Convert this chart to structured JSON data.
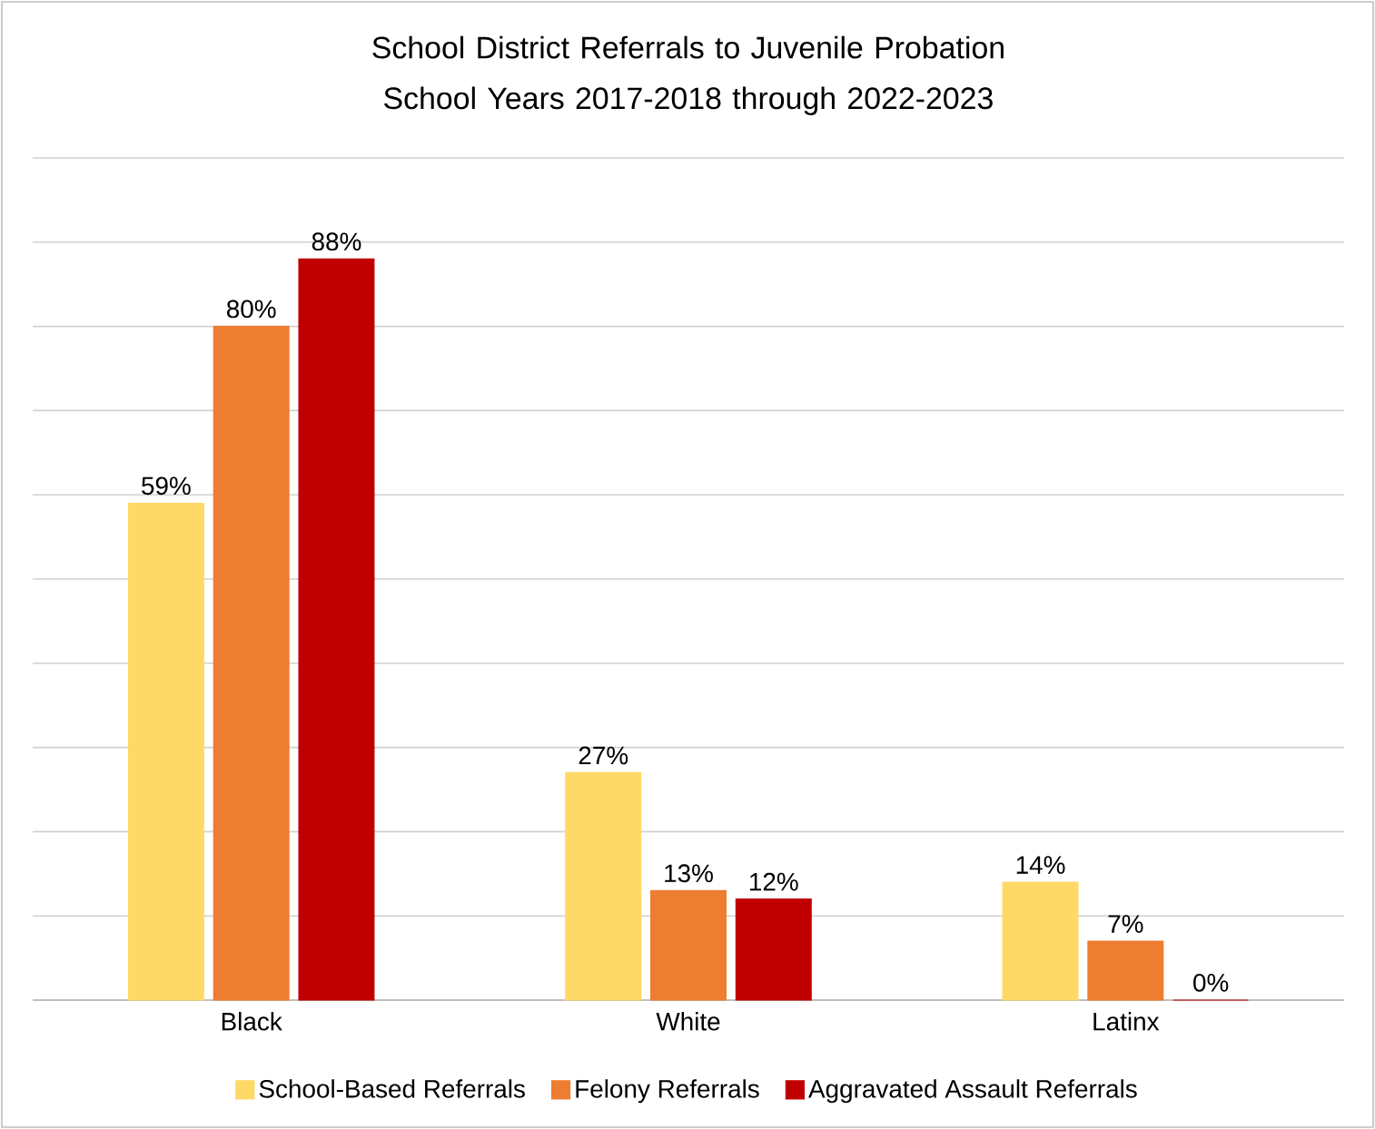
{
  "chart_data": {
    "type": "bar",
    "title": "School District Referrals to Juvenile Probation School Years 2017-2018 through 2022-2023",
    "categories": [
      "Black",
      "White",
      "Latinx"
    ],
    "series": [
      {
        "name": "School-Based Referrals",
        "color": "#ffd966",
        "values": [
          59,
          27,
          14
        ],
        "value_labels": [
          "59%",
          "27%",
          "14%"
        ]
      },
      {
        "name": "Felony Referrals",
        "color": "#ed7d31",
        "values": [
          80,
          13,
          7
        ],
        "value_labels": [
          "80%",
          "13%",
          "7%"
        ]
      },
      {
        "name": "Aggravated Assault Referrals",
        "color": "#c00000",
        "values": [
          88,
          12,
          0
        ],
        "value_labels": [
          "88%",
          "12%",
          "0%"
        ]
      }
    ],
    "ylim": [
      0,
      100
    ],
    "yticks": [
      {
        "value": 0,
        "label": null
      },
      {
        "value": 10,
        "label": null
      },
      {
        "value": 20,
        "label": null
      },
      {
        "value": 30,
        "label": null
      },
      {
        "value": 40,
        "label": null
      },
      {
        "value": 50,
        "label": null
      },
      {
        "value": 60,
        "label": null
      },
      {
        "value": 70,
        "label": null
      },
      {
        "value": 80,
        "label": null
      },
      {
        "value": 90,
        "label": null
      },
      {
        "value": 100,
        "label": null
      }
    ],
    "grid": "y",
    "legend": "bottom",
    "tick_labels": "x"
  }
}
